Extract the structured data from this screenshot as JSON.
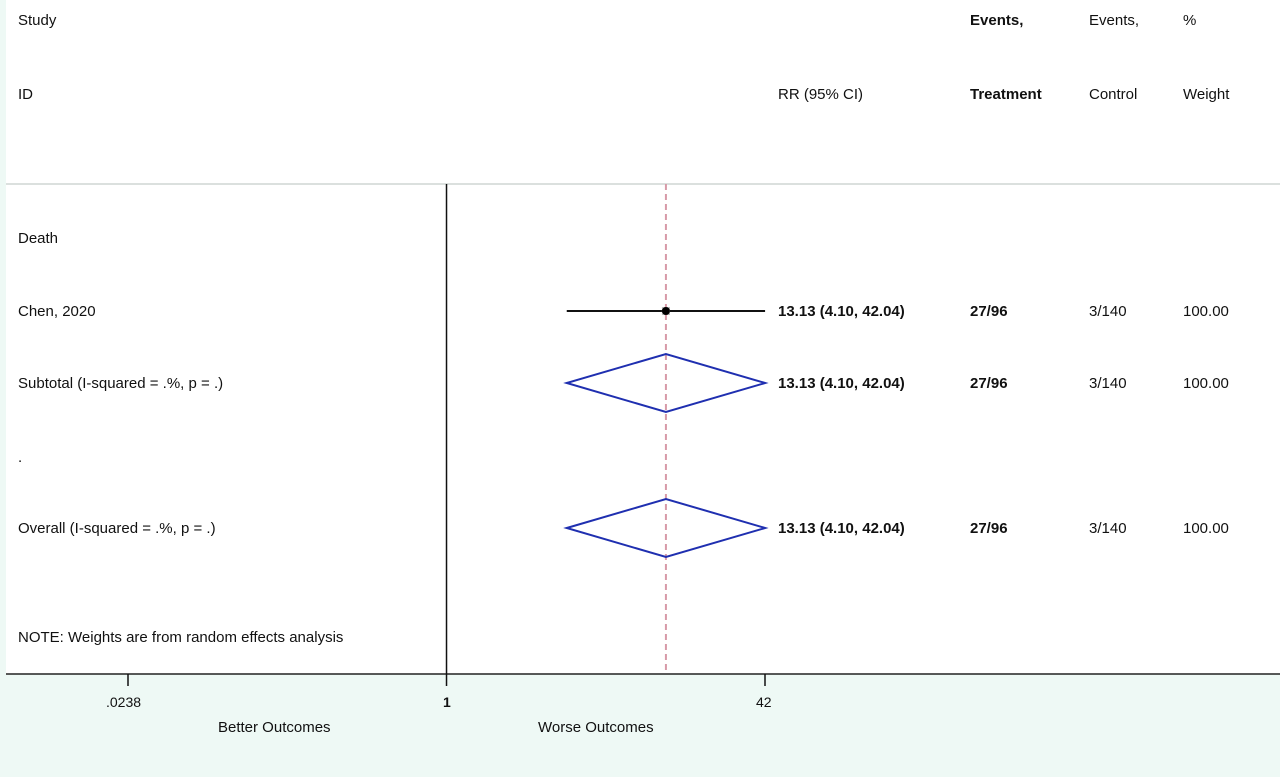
{
  "header": {
    "study_line1": "Study",
    "study_line2": "ID",
    "rr_label": "RR (95% CI)",
    "events_treatment_line1": "Events,",
    "events_treatment_line2": "Treatment",
    "events_control_line1": "Events,",
    "events_control_line2": "Control",
    "weight_line1": "%",
    "weight_line2": "Weight"
  },
  "rows": {
    "group_label": "Death",
    "study": {
      "label": "Chen, 2020",
      "rr_text": "13.13 (4.10, 42.04)",
      "events_treatment": "27/96",
      "events_control": "3/140",
      "weight": "100.00"
    },
    "subtotal": {
      "label": "Subtotal  (I-squared = .%, p = .)",
      "rr_text": "13.13 (4.10, 42.04)",
      "events_treatment": "27/96",
      "events_control": "3/140",
      "weight": "100.00"
    },
    "separator": ".",
    "overall": {
      "label": "Overall  (I-squared = .%, p = .)",
      "rr_text": "13.13 (4.10, 42.04)",
      "events_treatment": "27/96",
      "events_control": "3/140",
      "weight": "100.00"
    }
  },
  "note": "NOTE: Weights are from random effects analysis",
  "axis": {
    "ticks": [
      ".0238",
      "1",
      "42"
    ],
    "left_label": "Better Outcomes",
    "right_label": "Worse Outcomes"
  },
  "colors": {
    "diamond": "#1f2fb0",
    "reference_line": "#d79aa8",
    "panel_background": "#ffffff",
    "outer_background": "#eef9f5"
  },
  "chart_data": {
    "type": "forest",
    "x_scale": "log",
    "xlim": [
      0.0238,
      42
    ],
    "null_value": 1,
    "pooled_estimate": 13.13,
    "x_ticks": [
      0.0238,
      1,
      42
    ],
    "x_tick_labels": [
      ".0238",
      "1",
      "42"
    ],
    "studies": [
      {
        "label": "Chen, 2020",
        "rr": 13.13,
        "ci": [
          4.1,
          42.04
        ],
        "events_treatment": "27/96",
        "events_control": "3/140",
        "weight": 100.0
      }
    ],
    "subtotal": {
      "rr": 13.13,
      "ci": [
        4.1,
        42.04
      ]
    },
    "overall": {
      "rr": 13.13,
      "ci": [
        4.1,
        42.04
      ]
    }
  }
}
